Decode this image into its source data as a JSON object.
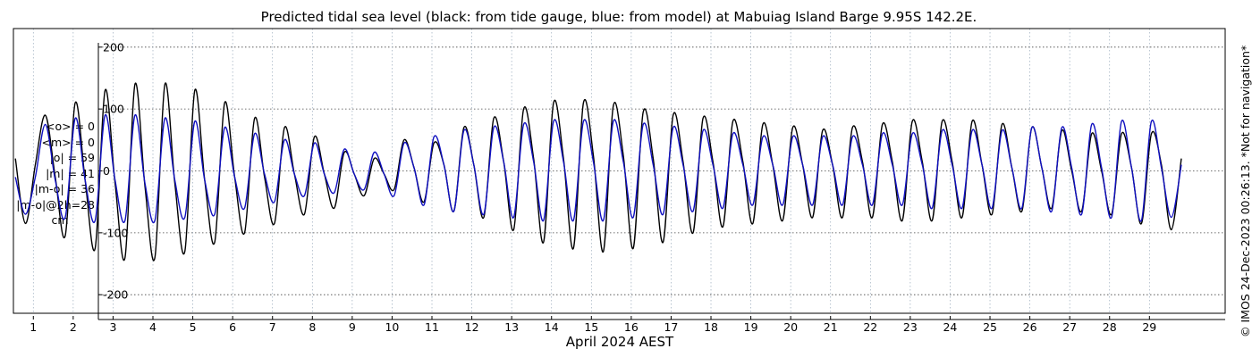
{
  "chart_data": {
    "type": "line",
    "title": "Predicted tidal sea level (black: from tide gauge, blue: from model) at Mabuiag Island Barge 9.95S 142.2E.",
    "xlabel": "April 2024 AEST",
    "ylabel": "",
    "xlim": [
      0.5,
      30.9
    ],
    "ylim": [
      -230,
      230
    ],
    "yticks": [
      -200,
      -100,
      0,
      100,
      200
    ],
    "xticks": [
      1,
      2,
      3,
      4,
      5,
      6,
      7,
      8,
      9,
      10,
      11,
      12,
      13,
      14,
      15,
      16,
      17,
      18,
      19,
      20,
      21,
      22,
      23,
      24,
      25,
      26,
      27,
      28,
      29
    ],
    "grid": true,
    "legend": "none",
    "sample_step_days": 0.25,
    "x_start": 0.55,
    "series": [
      {
        "name": "from tide gauge",
        "color": "#000000",
        "values": [
          20,
          -85,
          10,
          90,
          -10,
          -105,
          110,
          -15,
          -125,
          130,
          -20,
          -140,
          140,
          -25,
          -140,
          140,
          -20,
          -130,
          130,
          -15,
          -115,
          110,
          -10,
          -100,
          85,
          -10,
          -85,
          70,
          -5,
          -70,
          55,
          -5,
          -60,
          30,
          -5,
          -40,
          20,
          -5,
          -30,
          50,
          5,
          -50,
          45,
          10,
          -65,
          70,
          10,
          -75,
          85,
          15,
          -95,
          100,
          20,
          -115,
          110,
          20,
          -125,
          110,
          25,
          -130,
          105,
          25,
          -125,
          95,
          20,
          -115,
          90,
          15,
          -100,
          85,
          15,
          -90,
          80,
          15,
          -85,
          75,
          10,
          -80,
          70,
          10,
          -75,
          65,
          10,
          -75,
          70,
          15,
          -75,
          75,
          15,
          -80,
          80,
          15,
          -80,
          80,
          15,
          -75,
          80,
          10,
          -70,
          75,
          5,
          -65,
          70,
          5,
          -60,
          65,
          0,
          -65,
          60,
          0,
          -70,
          60,
          5,
          -85,
          60,
          10,
          -95,
          20
        ]
      },
      {
        "name": "from model",
        "color": "#1010c0",
        "values": [
          -10,
          -70,
          -10,
          75,
          -15,
          -75,
          85,
          -15,
          -80,
          90,
          -15,
          -80,
          90,
          -20,
          -80,
          85,
          -15,
          -75,
          80,
          -15,
          -70,
          70,
          -10,
          -60,
          60,
          -5,
          -50,
          50,
          -5,
          -40,
          45,
          -5,
          -35,
          35,
          -5,
          -30,
          30,
          -5,
          -40,
          45,
          5,
          -55,
          55,
          10,
          -65,
          65,
          10,
          -70,
          70,
          15,
          -75,
          75,
          15,
          -80,
          80,
          15,
          -80,
          80,
          15,
          -80,
          80,
          15,
          -75,
          75,
          10,
          -70,
          70,
          10,
          -65,
          65,
          10,
          -60,
          60,
          10,
          -55,
          55,
          10,
          -55,
          55,
          10,
          -55,
          55,
          10,
          -55,
          55,
          10,
          -55,
          60,
          10,
          -55,
          60,
          10,
          -60,
          65,
          10,
          -60,
          65,
          10,
          -60,
          65,
          5,
          -60,
          70,
          5,
          -65,
          70,
          5,
          -70,
          75,
          5,
          -75,
          80,
          5,
          -80,
          80,
          5,
          -75,
          10
        ]
      }
    ]
  },
  "stats": {
    "lines": [
      "<o> = 0",
      "<m> = 0",
      "|o| = 59",
      "|m| = 41",
      "|m-o| = 36",
      "|m-o|@2h=28"
    ],
    "unit": "cm"
  },
  "copyright": "© IMOS 24-Dec-2023 00:26:13. *Not for navigation*"
}
